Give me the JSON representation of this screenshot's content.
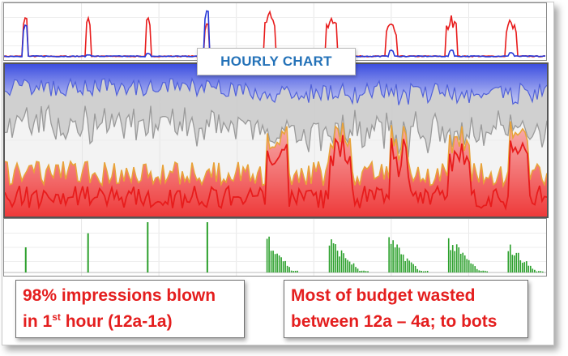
{
  "title": "HOURLY CHART",
  "callouts": {
    "left": {
      "line1": "98% impressions blown",
      "line2_pre": "in 1",
      "line2_sup": "st",
      "line2_post": " hour (12a-1a)"
    },
    "right": {
      "line1": "Most of budget wasted",
      "line2": "between 12a – 4a; to bots"
    }
  },
  "colors": {
    "red": "#e81c1c",
    "blue": "#2638d8",
    "orange": "#e8a33a",
    "green": "#2ca02c",
    "title_blue": "#2472b8",
    "callout_red": "#e41e1e"
  },
  "chart_data": [
    {
      "type": "line",
      "panel": "top",
      "series": [
        {
          "color": "red",
          "spikes": [
            {
              "x": 0.04,
              "v": 0.85
            },
            {
              "x": 0.155,
              "v": 0.8
            },
            {
              "x": 0.265,
              "v": 0.85
            },
            {
              "x": 0.375,
              "v": 0.72
            },
            {
              "x": 0.49,
              "v": 1.0
            },
            {
              "x": 0.605,
              "v": 0.88
            },
            {
              "x": 0.715,
              "v": 0.82
            },
            {
              "x": 0.825,
              "v": 0.85
            },
            {
              "x": 0.935,
              "v": 0.78
            }
          ]
        },
        {
          "color": "blue",
          "spikes": [
            {
              "x": 0.04,
              "v": 0.7
            },
            {
              "x": 0.155,
              "v": 0.05
            },
            {
              "x": 0.265,
              "v": 0.1
            },
            {
              "x": 0.375,
              "v": 1.0
            },
            {
              "x": 0.49,
              "v": 0.08
            },
            {
              "x": 0.605,
              "v": 0.1
            },
            {
              "x": 0.715,
              "v": 0.15
            },
            {
              "x": 0.825,
              "v": 0.15
            },
            {
              "x": 0.935,
              "v": 0.1
            }
          ]
        }
      ]
    },
    {
      "type": "area",
      "panel": "middle",
      "series": [
        {
          "name": "",
          "color": "red"
        },
        {
          "name": "",
          "color": "orange"
        },
        {
          "name": "",
          "color": "gray"
        },
        {
          "name": "",
          "color": "blue"
        }
      ]
    },
    {
      "type": "bar",
      "panel": "bottom",
      "peaks": [
        {
          "x": 0.04,
          "v": 0.5,
          "spread": 1
        },
        {
          "x": 0.155,
          "v": 0.78,
          "spread": 1
        },
        {
          "x": 0.265,
          "v": 1.0,
          "spread": 1
        },
        {
          "x": 0.375,
          "v": 1.0,
          "spread": 1
        },
        {
          "x": 0.49,
          "v": 0.85,
          "spread": 8
        },
        {
          "x": 0.605,
          "v": 0.75,
          "spread": 10
        },
        {
          "x": 0.715,
          "v": 0.75,
          "spread": 10
        },
        {
          "x": 0.825,
          "v": 0.75,
          "spread": 10
        },
        {
          "x": 0.935,
          "v": 0.62,
          "spread": 9
        }
      ]
    }
  ]
}
